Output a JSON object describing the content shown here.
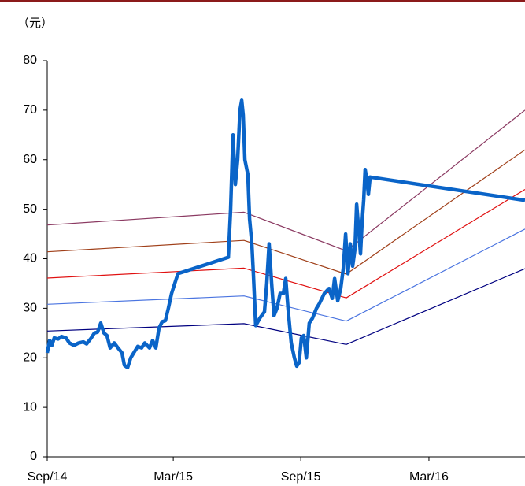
{
  "chart_data": {
    "type": "line",
    "y_axis_label": "（元）",
    "xlim": [
      0,
      22.48
    ],
    "xticks": [
      {
        "value": 0,
        "label": "Sep/14"
      },
      {
        "value": 5.93,
        "label": "Mar/15"
      },
      {
        "value": 11.93,
        "label": "Sep/15"
      },
      {
        "value": 17.96,
        "label": "Mar/16"
      }
    ],
    "ylim": [
      0,
      80
    ],
    "yticks": [
      0,
      10,
      20,
      30,
      40,
      50,
      60,
      70,
      80
    ],
    "grid": false,
    "series": [
      {
        "color": "#000080",
        "width": 1.2,
        "x": [
          0,
          9.26,
          14.07,
          22.48
        ],
        "values": [
          25.4,
          26.9,
          22.7,
          38
        ]
      },
      {
        "color": "#4a74e0",
        "width": 1.2,
        "x": [
          0,
          9.26,
          14.07,
          22.48
        ],
        "values": [
          30.8,
          32.5,
          27.4,
          46
        ]
      },
      {
        "color": "#e01010",
        "width": 1.2,
        "x": [
          0,
          9.26,
          14.07,
          22.48
        ],
        "values": [
          36.1,
          38.1,
          32.1,
          54
        ]
      },
      {
        "color": "#a0401a",
        "width": 1.2,
        "x": [
          0,
          9.26,
          14.07,
          22.48
        ],
        "values": [
          41.4,
          43.7,
          36.9,
          62
        ]
      },
      {
        "color": "#8b3a62",
        "width": 1.2,
        "x": [
          0,
          9.26,
          14.07,
          22.48
        ],
        "values": [
          46.8,
          49.4,
          41.6,
          70
        ]
      },
      {
        "color": "#0a64c8",
        "width": 4.5,
        "x": [
          0,
          0.11,
          0.22,
          0.33,
          0.52,
          0.67,
          0.89,
          1.04,
          1.26,
          1.48,
          1.7,
          1.85,
          2.07,
          2.22,
          2.37,
          2.52,
          2.67,
          2.81,
          2.96,
          3.15,
          3.33,
          3.52,
          3.63,
          3.78,
          3.93,
          4.07,
          4.26,
          4.44,
          4.59,
          4.81,
          4.96,
          5.11,
          5.26,
          5.41,
          5.56,
          5.7,
          5.85,
          6,
          6.15,
          8.52,
          8.63,
          8.74,
          8.85,
          8.96,
          9.07,
          9.15,
          9.22,
          9.3,
          9.44,
          9.52,
          9.63,
          9.7,
          9.81,
          10,
          10.22,
          10.33,
          10.44,
          10.56,
          10.67,
          10.81,
          10.96,
          11.11,
          11.22,
          11.33,
          11.48,
          11.63,
          11.74,
          11.85,
          11.96,
          12.07,
          12.19,
          12.33,
          12.48,
          12.67,
          12.81,
          13.04,
          13.26,
          13.41,
          13.52,
          13.67,
          13.81,
          13.93,
          14.04,
          14.15,
          14.26,
          14.37,
          14.48,
          14.56,
          14.67,
          14.74,
          14.81,
          14.89,
          14.96,
          15.04,
          15.11,
          15.19,
          22.48
        ],
        "values": [
          21,
          23.5,
          22.5,
          24,
          23.8,
          24.3,
          24,
          23,
          22.5,
          23,
          23.2,
          22.8,
          24,
          25,
          25.2,
          27,
          25,
          24.5,
          22,
          23,
          22,
          21,
          18.5,
          18,
          20,
          21,
          22.3,
          22,
          23,
          22,
          23.5,
          22,
          26,
          27.3,
          27.5,
          30,
          33,
          35,
          37,
          40.3,
          50,
          65,
          55,
          60,
          70,
          72,
          69,
          60,
          57,
          48,
          43,
          37,
          26.5,
          28,
          29.3,
          35,
          43,
          35,
          28.5,
          30,
          33,
          33,
          36,
          30,
          23,
          20,
          18.3,
          19,
          24,
          24.5,
          20,
          27,
          28,
          30,
          31,
          33,
          34,
          32,
          36,
          31.5,
          34,
          38,
          45,
          37,
          43,
          38.5,
          42,
          51,
          45,
          41,
          47,
          52,
          58,
          56,
          53,
          56.5,
          51.8
        ]
      }
    ]
  }
}
